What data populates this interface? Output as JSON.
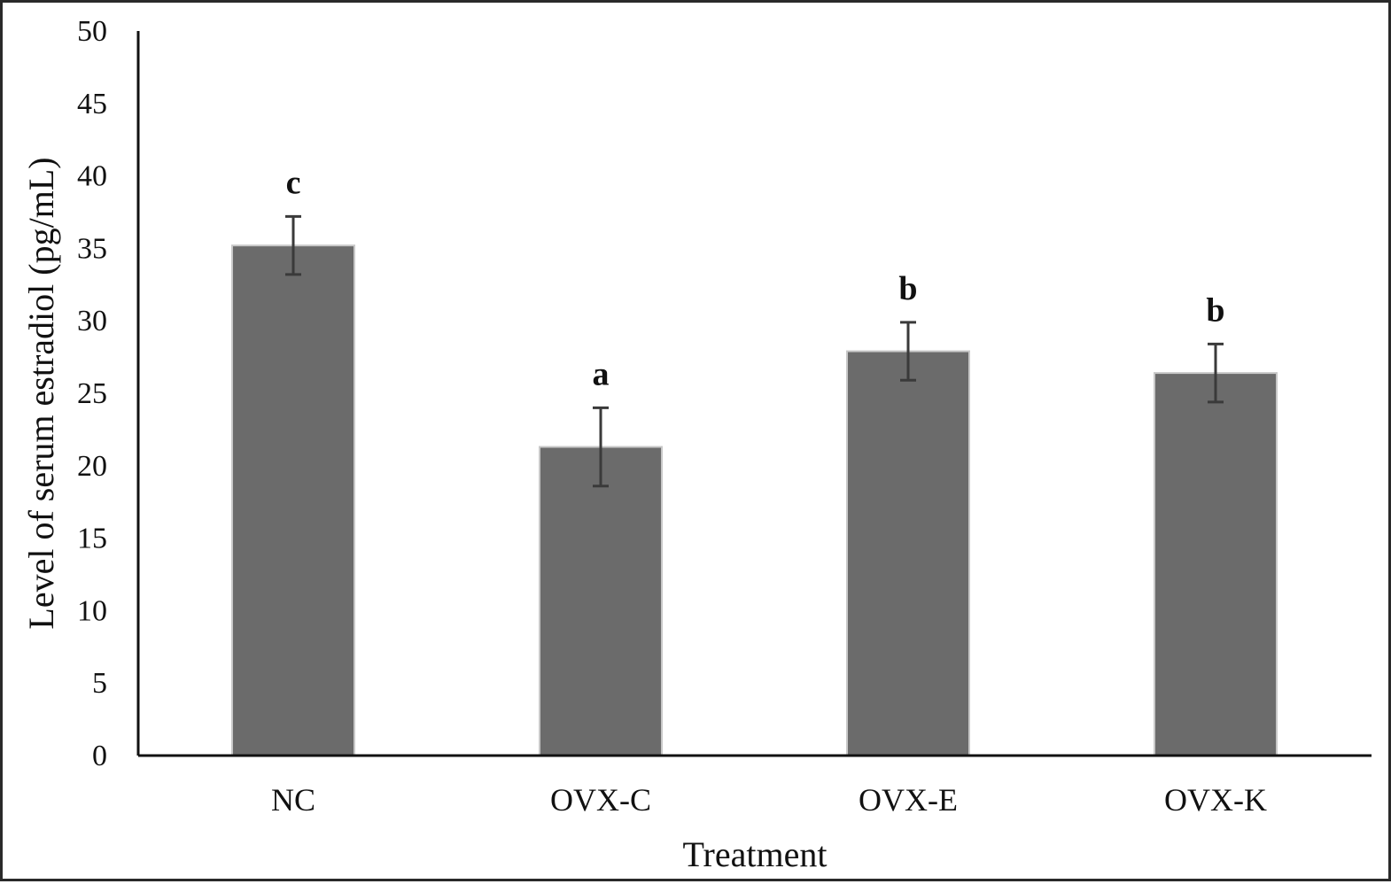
{
  "chart_data": {
    "type": "bar",
    "title": "",
    "xlabel": "Treatment",
    "ylabel": "Level of serum estradiol (pg/mL)",
    "ylim": [
      0,
      50
    ],
    "yticks": [
      0,
      5,
      10,
      15,
      20,
      25,
      30,
      35,
      40,
      45,
      50
    ],
    "categories": [
      "NC",
      "OVX-C",
      "OVX-E",
      "OVX-K"
    ],
    "values": [
      35.2,
      21.3,
      27.9,
      26.4
    ],
    "error_bars": [
      2.0,
      2.7,
      2.0,
      2.0
    ],
    "significance_letters": [
      "c",
      "a",
      "b",
      "b"
    ],
    "grid": false,
    "legend": "none",
    "colors": {
      "bar": "#6b6b6b",
      "bar_edge": "#c8c8c8",
      "error_bar": "#3a3a3a",
      "axis": "#111111"
    }
  }
}
